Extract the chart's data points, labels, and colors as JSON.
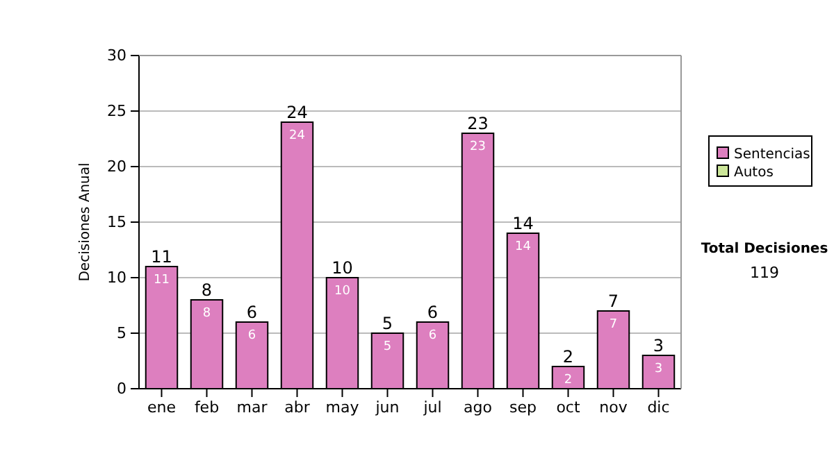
{
  "chart_data": {
    "type": "bar",
    "stacked": true,
    "ylabel": "Decisiones Anual",
    "categories": [
      "ene",
      "feb",
      "mar",
      "abr",
      "may",
      "jun",
      "jul",
      "ago",
      "sep",
      "oct",
      "nov",
      "dic"
    ],
    "series": [
      {
        "name": "Sentencias",
        "color": "#dd7fbf",
        "values": [
          11,
          8,
          6,
          24,
          10,
          5,
          6,
          23,
          14,
          2,
          7,
          3
        ],
        "value_labels": [
          "11",
          "8",
          "6",
          "24",
          "10",
          "5",
          "6",
          "23",
          "14",
          "2",
          "7",
          "3"
        ]
      },
      {
        "name": "Autos",
        "color": "#cce699",
        "values": [
          0,
          0,
          0,
          0,
          0,
          0,
          0,
          0,
          0,
          0,
          0,
          0
        ]
      }
    ],
    "totals": [
      "11",
      "8",
      "6",
      "24",
      "10",
      "5",
      "6",
      "23",
      "14",
      "2",
      "7",
      "3"
    ],
    "ylim": [
      0,
      30
    ],
    "yticks": [
      0,
      5,
      10,
      15,
      20,
      25,
      30
    ],
    "grid": "y",
    "legend": "right",
    "annotations": [
      "Total Decisiones",
      "119"
    ]
  }
}
